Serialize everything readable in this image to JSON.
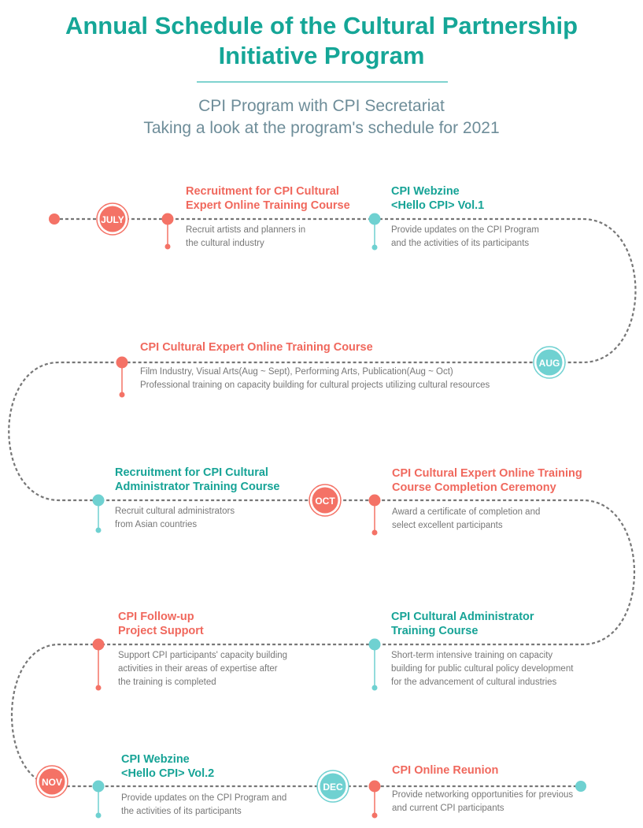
{
  "title": "Annual Schedule of the Cultural Partnership Initiative Program",
  "subtitle_line1": "CPI Program with CPI Secretariat",
  "subtitle_line2": "Taking a look at the program's schedule for 2021",
  "colors": {
    "coral": "#f47266",
    "teal": "#6fd1d1",
    "title": "#15a697"
  },
  "months": {
    "jul": "JULY",
    "aug": "AUG",
    "oct": "OCT",
    "nov": "NOV",
    "dec": "DEC"
  },
  "events": [
    {
      "title": "Recruitment for CPI Cultural\nExpert Online Training Course",
      "desc": "Recruit artists and planners in\nthe cultural industry"
    },
    {
      "title": "CPI Webzine\n<Hello CPI> Vol.1",
      "desc": "Provide updates on the CPI Program\nand the activities of its participants"
    },
    {
      "title": "CPI Cultural Expert Online Training Course",
      "desc": "Film Industry, Visual Arts(Aug ~ Sept),  Performing Arts, Publication(Aug ~ Oct)\nProfessional training on capacity building for cultural projects utilizing cultural resources"
    },
    {
      "title": "Recruitment for CPI Cultural\nAdministrator Training Course",
      "desc": "Recruit cultural administrators\nfrom Asian countries"
    },
    {
      "title": "CPI Cultural Expert Online Training\nCourse Completion Ceremony",
      "desc": "Award a certificate of completion and\nselect excellent participants"
    },
    {
      "title": "CPI Follow-up\nProject Support",
      "desc": "Support CPI participants' capacity building\nactivities in their areas of expertise after\nthe training is completed"
    },
    {
      "title": "CPI Cultural Administrator\nTraining Course",
      "desc": "Short-term intensive training on capacity\nbuilding for public cultural policy development\nfor the advancement of cultural industries"
    },
    {
      "title": "CPI Webzine\n<Hello CPI> Vol.2",
      "desc": "Provide updates on the CPI Program and\nthe activities of its participants"
    },
    {
      "title": "CPI Online Reunion",
      "desc": "Provide networking opportunities for previous\nand current CPI participants"
    }
  ]
}
